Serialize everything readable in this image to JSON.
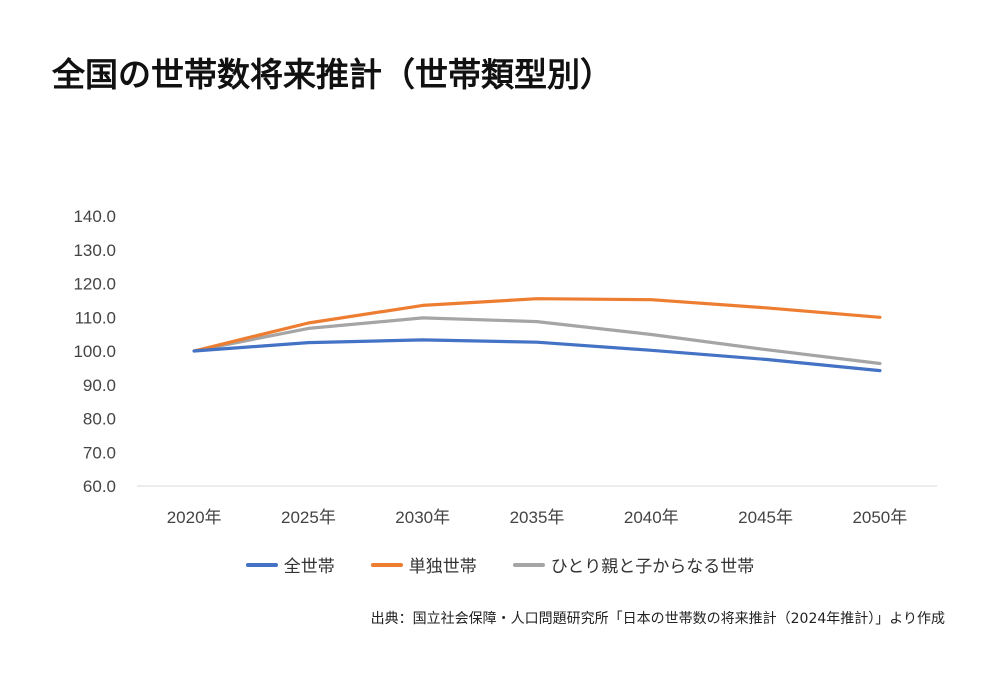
{
  "title": "全国の世帯数将来推計（世帯類型別）",
  "source": "出典：国立社会保障・人口問題研究所「日本の世帯数の将来推計（2024年推計）」より作成",
  "chart_data": {
    "type": "line",
    "title": "",
    "categories": [
      "2020年",
      "2025年",
      "2030年",
      "2035年",
      "2040年",
      "2045年",
      "2050年"
    ],
    "ylim": [
      60,
      140
    ],
    "yticks": [
      "60.0",
      "70.0",
      "80.0",
      "90.0",
      "100.0",
      "110.0",
      "120.0",
      "130.0",
      "140.0"
    ],
    "grid": false,
    "legend_position": "bottom",
    "series": [
      {
        "name": "全世帯",
        "color": "#4472C4",
        "values": [
          100.0,
          102.5,
          103.3,
          102.6,
          100.2,
          97.5,
          94.2
        ]
      },
      {
        "name": "単独世帯",
        "color": "#ED7D31",
        "values": [
          100.0,
          108.3,
          113.5,
          115.5,
          115.2,
          112.8,
          110.0
        ]
      },
      {
        "name": "ひとり親と子からなる世帯",
        "color": "#A5A5A5",
        "values": [
          100.0,
          106.7,
          109.8,
          108.7,
          104.9,
          100.4,
          96.3
        ]
      }
    ]
  }
}
